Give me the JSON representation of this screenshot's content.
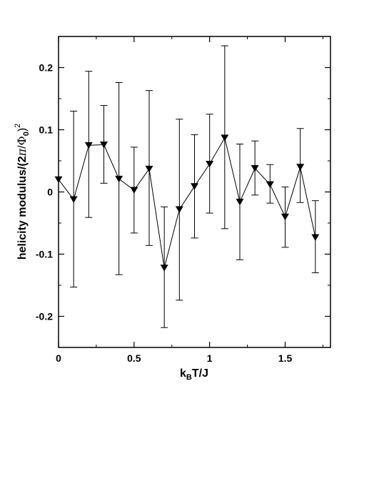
{
  "chart_data": {
    "type": "line",
    "xlabel": {
      "base": "k",
      "sub": "B",
      "rest": "T/J"
    },
    "ylabel": {
      "pre": "helicity modulus/(2",
      "pi": "π",
      "slash": "/",
      "phi": "Φ",
      "sub": "0",
      "close": ")",
      "sup": "2"
    },
    "xlim": [
      0,
      1.8
    ],
    "ylim": [
      -0.25,
      0.25
    ],
    "xticks": [
      0,
      0.5,
      1,
      1.5
    ],
    "xtick_labels": [
      "0",
      "0.5",
      "1",
      "1.5"
    ],
    "yticks": [
      -0.2,
      -0.1,
      0,
      0.1,
      0.2
    ],
    "ytick_labels": [
      "-0.2",
      "-0.1",
      "0",
      "0.1",
      "0.2"
    ],
    "marker": "down-triangle",
    "grid": false,
    "x": [
      0,
      0.1,
      0.2,
      0.3,
      0.4,
      0.5,
      0.6,
      0.7,
      0.8,
      0.9,
      1.0,
      1.1,
      1.2,
      1.3,
      1.4,
      1.5,
      1.6,
      1.7
    ],
    "y": [
      0.02,
      -0.012,
      0.075,
      0.076,
      0.021,
      0.003,
      0.037,
      -0.122,
      -0.028,
      0.009,
      0.045,
      0.087,
      -0.016,
      0.038,
      0.012,
      -0.04,
      0.04,
      -0.073
    ],
    "y_upper": [
      0.02,
      0.13,
      0.194,
      0.139,
      0.176,
      0.072,
      0.163,
      -0.024,
      0.117,
      0.092,
      0.125,
      0.235,
      0.077,
      0.082,
      0.044,
      0.008,
      0.102,
      -0.014
    ],
    "y_lower": [
      0.02,
      -0.153,
      -0.041,
      0.014,
      -0.133,
      -0.066,
      -0.086,
      -0.218,
      -0.174,
      -0.074,
      -0.034,
      -0.059,
      -0.109,
      -0.005,
      -0.018,
      -0.089,
      -0.017,
      -0.13
    ]
  }
}
